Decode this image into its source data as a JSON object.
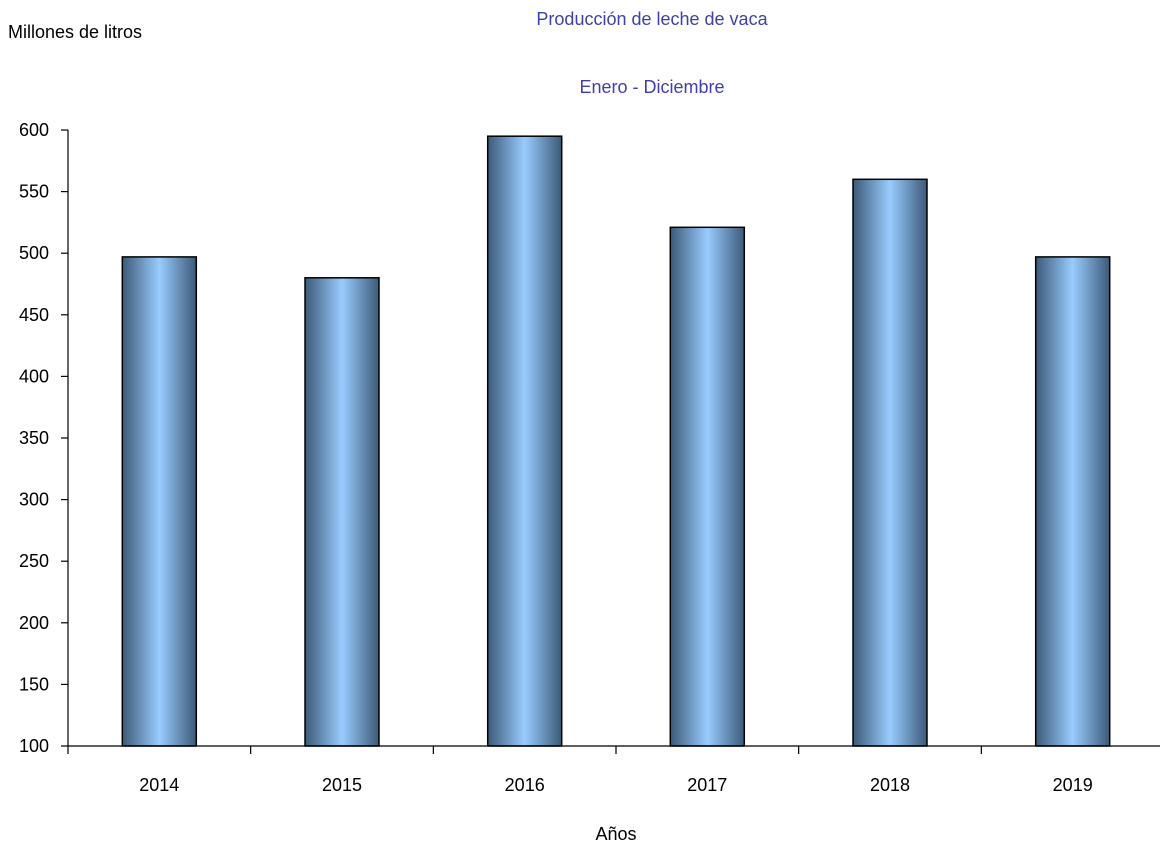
{
  "chart_data": {
    "type": "bar",
    "title": "Producción de leche de vaca",
    "subtitle": "Enero - Diciembre",
    "ylabel": "Millones de litros",
    "xlabel": "Años",
    "categories": [
      "2014",
      "2015",
      "2016",
      "2017",
      "2018",
      "2019"
    ],
    "values": [
      497,
      480,
      595,
      521,
      560,
      497
    ],
    "ylim": [
      100,
      600
    ],
    "yticks": [
      100,
      150,
      200,
      250,
      300,
      350,
      400,
      450,
      500,
      550,
      600
    ],
    "grid": false,
    "legend": "none",
    "colors": {
      "bar_light": "#99ccff",
      "bar_dark": "#3c5a78",
      "title": "#3f3fb0",
      "axis": "#000000"
    }
  }
}
